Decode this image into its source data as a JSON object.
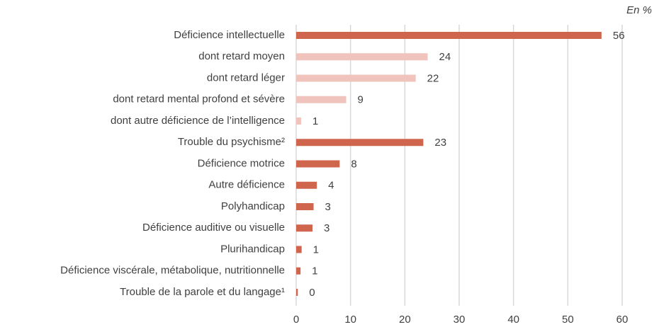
{
  "chart_data": {
    "type": "barh",
    "title": "En %",
    "categories": [
      "Déficience intellectuelle",
      "dont retard moyen",
      "dont retard léger",
      "dont retard mental profond et sévère",
      "dont autre déficience de l’intelligence",
      "Trouble du psychisme²",
      "Déficience motrice",
      "Autre déficience",
      "Polyhandicap",
      "Déficience auditive ou visuelle",
      "Plurihandicap",
      "Déficience viscérale, métabolique, nutritionnelle",
      "Trouble de la parole et du langage¹"
    ],
    "values": [
      56.2,
      24.2,
      22.0,
      9.2,
      0.9,
      23.4,
      8.0,
      3.8,
      3.2,
      3.0,
      1.0,
      0.8,
      0.3
    ],
    "value_labels": [
      "56",
      "24",
      "22",
      "9",
      "1",
      "23",
      "8",
      "4",
      "3",
      "3",
      "1",
      "1",
      "0"
    ],
    "colors": [
      "#d0654e",
      "#f0c4bc",
      "#f0c4bc",
      "#f0c4bc",
      "#f0c4bc",
      "#d0654e",
      "#d0654e",
      "#d0654e",
      "#d0654e",
      "#d0654e",
      "#d0654e",
      "#d0654e",
      "#d0654e"
    ],
    "xlim": [
      0,
      60
    ],
    "xticks": [
      0,
      10,
      20,
      30,
      40,
      50,
      60
    ],
    "grid": true
  }
}
